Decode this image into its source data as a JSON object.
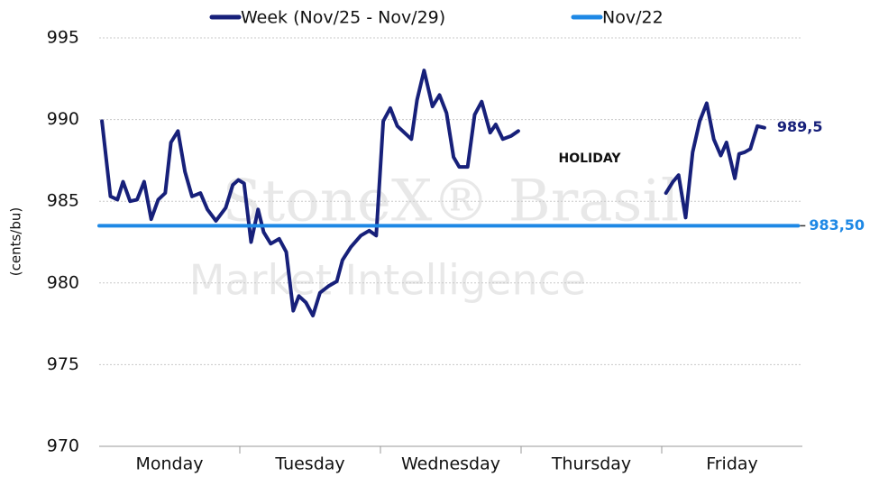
{
  "chart_data": {
    "type": "line",
    "y_label": "(cents/bu)",
    "annotation": "HOLIDAY",
    "watermark": [
      "StoneX® Brasil",
      "Market Intelligence"
    ],
    "xlim": [
      0,
      5
    ],
    "xticks": [
      {
        "value": 0.5,
        "label": "Monday"
      },
      {
        "value": 1.5,
        "label": "Tuesday"
      },
      {
        "value": 2.5,
        "label": "Wednesday"
      },
      {
        "value": 3.5,
        "label": "Thursday"
      },
      {
        "value": 4.5,
        "label": "Friday"
      }
    ],
    "ylim": [
      970,
      995
    ],
    "yticks": [
      970,
      975,
      980,
      985,
      990,
      995
    ],
    "grid": true,
    "series": [
      {
        "name": "Week (Nov/25 - Nov/29)",
        "color": "#17207a",
        "end_label": "989,5",
        "x": [
          0.02,
          0.08,
          0.13,
          0.17,
          0.22,
          0.27,
          0.32,
          0.37,
          0.42,
          0.47,
          0.51,
          0.56,
          0.61,
          0.66,
          0.72,
          0.77,
          0.83,
          0.9,
          0.95,
          0.99,
          1.03,
          1.08,
          1.13,
          1.17,
          1.22,
          1.28,
          1.33,
          1.38,
          1.42,
          1.47,
          1.52,
          1.57,
          1.63,
          1.69,
          1.73,
          1.79,
          1.86,
          1.92,
          1.97,
          2.02,
          2.07,
          2.12,
          2.17,
          2.22,
          2.26,
          2.31,
          2.37,
          2.42,
          2.47,
          2.52,
          2.56,
          2.62,
          2.67,
          2.72,
          2.78,
          2.82,
          2.87,
          2.93,
          2.98,
          3.5,
          4.03,
          4.08,
          4.12,
          4.17,
          4.22,
          4.27,
          4.32,
          4.37,
          4.42,
          4.46,
          4.52,
          4.55,
          4.59,
          4.63,
          4.68,
          4.73
        ],
        "values": [
          989.9,
          985.3,
          985.1,
          986.2,
          985.0,
          985.1,
          986.2,
          983.9,
          985.1,
          985.5,
          988.6,
          989.3,
          986.8,
          985.3,
          985.5,
          984.5,
          983.8,
          984.6,
          986.0,
          986.3,
          986.1,
          982.5,
          984.5,
          983.1,
          982.4,
          982.7,
          981.9,
          978.3,
          979.2,
          978.8,
          978.0,
          979.4,
          979.8,
          980.1,
          981.4,
          982.2,
          982.9,
          983.2,
          982.9,
          989.9,
          990.7,
          989.6,
          989.2,
          988.8,
          991.2,
          993.0,
          990.8,
          991.5,
          990.4,
          987.7,
          987.1,
          987.1,
          990.3,
          991.1,
          989.2,
          989.7,
          988.8,
          989.0,
          989.3,
          null,
          985.5,
          986.2,
          986.6,
          984.0,
          988.0,
          989.9,
          991.0,
          988.8,
          987.8,
          988.6,
          986.4,
          987.9,
          988.0,
          988.2,
          989.6,
          989.5
        ]
      },
      {
        "name": "Nov/22",
        "color": "#1e88e5",
        "end_label": "983,50",
        "x": [
          0.0,
          4.97
        ],
        "values": [
          983.5,
          983.5
        ]
      }
    ]
  }
}
